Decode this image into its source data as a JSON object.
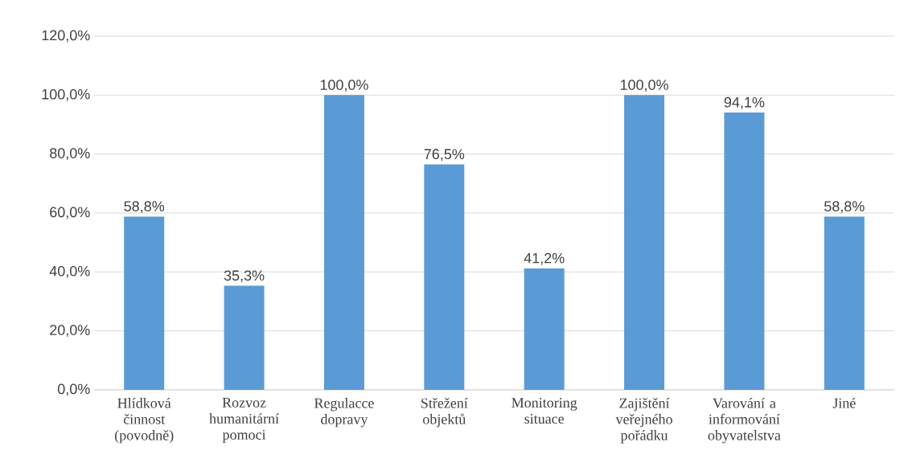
{
  "chart_data": {
    "type": "bar",
    "categories": [
      "Hlídková činnost (povodně)",
      "Rozvoz humanitární pomoci",
      "Regulacce dopravy",
      "Střežení objektů",
      "Monitoring situace",
      "Zajištění veřejného pořádku",
      "Varování a informování obyvatelstva",
      "Jiné"
    ],
    "values": [
      58.8,
      35.3,
      100.0,
      76.5,
      41.2,
      100.0,
      94.1,
      58.8
    ],
    "value_labels": [
      "58,8%",
      "35,3%",
      "100,0%",
      "76,5%",
      "41,2%",
      "100,0%",
      "94,1%",
      "58,8%"
    ],
    "color": "#5b9bd5",
    "ylim": [
      0,
      120
    ],
    "yticks": [
      {
        "value": 0,
        "label": "0,0%"
      },
      {
        "value": 20,
        "label": "20,0%"
      },
      {
        "value": 40,
        "label": "40,0%"
      },
      {
        "value": 60,
        "label": "60,0%"
      },
      {
        "value": 80,
        "label": "80,0%"
      },
      {
        "value": 100,
        "label": "100,0%"
      },
      {
        "value": 120,
        "label": "120,0%"
      }
    ],
    "grid": "y"
  }
}
